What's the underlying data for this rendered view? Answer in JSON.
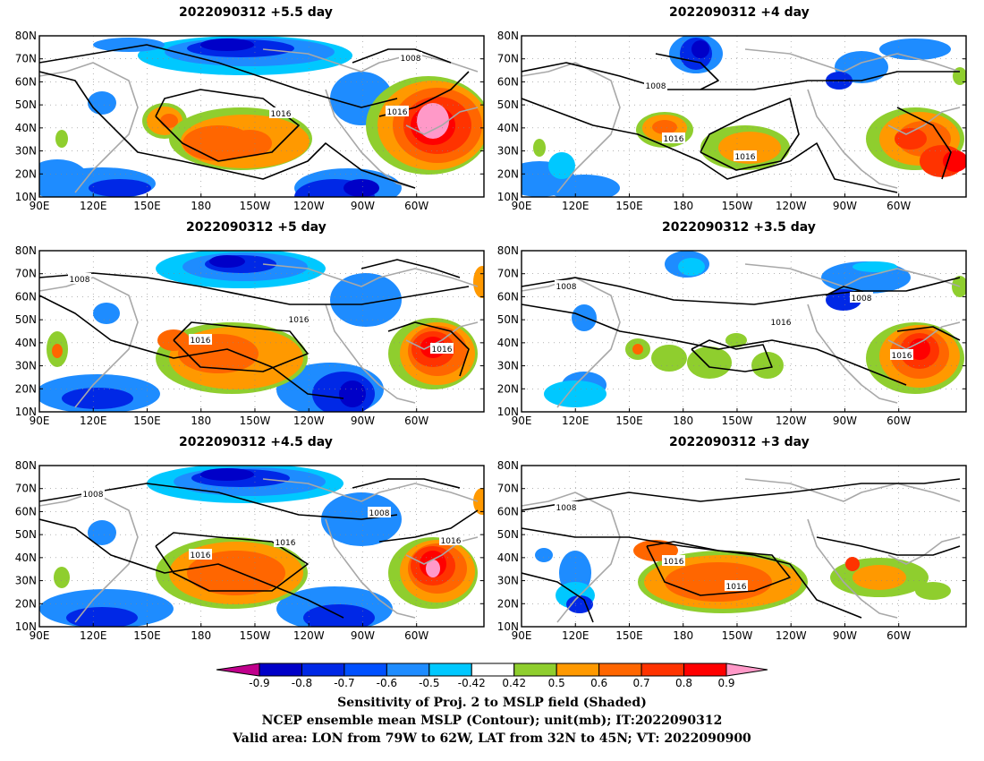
{
  "panels": [
    {
      "title": "2022090312 +5.5 day",
      "contour_labels": [
        "1008",
        "1016",
        "1016"
      ]
    },
    {
      "title": "2022090312 +4 day",
      "contour_labels": [
        "1008",
        "1016",
        "1016"
      ]
    },
    {
      "title": "2022090312 +5 day",
      "contour_labels": [
        "1008",
        "1016",
        "1016",
        "1016"
      ]
    },
    {
      "title": "2022090312 +3.5 day",
      "contour_labels": [
        "1008",
        "1008",
        "1016",
        "1016"
      ]
    },
    {
      "title": "2022090312 +4.5 day",
      "contour_labels": [
        "1008",
        "1008",
        "1016",
        "1016",
        "1016"
      ]
    },
    {
      "title": "2022090312 +3 day",
      "contour_labels": [
        "1008",
        "1016",
        "1016"
      ]
    }
  ],
  "lat_ticks": [
    "10N",
    "20N",
    "30N",
    "40N",
    "50N",
    "60N",
    "70N",
    "80N"
  ],
  "lon_ticks": [
    "90E",
    "120E",
    "150E",
    "180",
    "150W",
    "120W",
    "90W",
    "60W"
  ],
  "colorbar": {
    "levels": [
      "-0.9",
      "-0.8",
      "-0.7",
      "-0.6",
      "-0.5",
      "-0.42",
      "0.42",
      "0.5",
      "0.6",
      "0.7",
      "0.8",
      "0.9"
    ],
    "colors": [
      "#c0008c",
      "#0000c8",
      "#0028e6",
      "#0050ff",
      "#1e8cff",
      "#00c8ff",
      "#ffffff",
      "#8fce2e",
      "#ff9900",
      "#ff6600",
      "#ff3300",
      "#ff0000",
      "#ff99c8"
    ]
  },
  "footer": {
    "line1": "Sensitivity of Proj. 2 to MSLP field (Shaded)",
    "line2": "NCEP ensemble mean MSLP (Contour); unit(mb); IT:2022090312",
    "line3": "Valid area: LON from 79W to 62W, LAT from 32N to 45N; VT: 2022090900"
  }
}
